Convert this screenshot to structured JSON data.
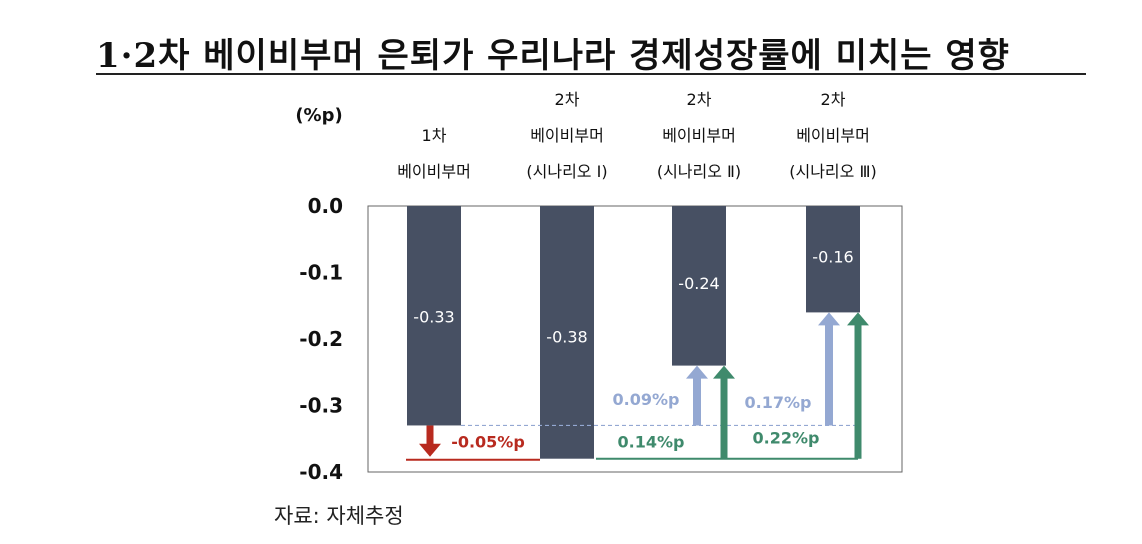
{
  "title": "1·2차 베이비부머 은퇴가 우리나라 경제성장률에 미치는 영향",
  "source": "자료: 자체추정",
  "colors": {
    "bar": "#475063",
    "red": "#b82a1f",
    "green": "#3f8a6c",
    "blue": "#94a8d2"
  },
  "chart_data": {
    "type": "bar",
    "title": "1·2차 베이비부머 은퇴가 우리나라 경제성장률에 미치는 영향",
    "ylabel": "(%p)",
    "ylim": [
      -0.4,
      0.0
    ],
    "yticks": [
      "0.0",
      "-0.1",
      "-0.2",
      "-0.3",
      "-0.4"
    ],
    "ytick_values": [
      0.0,
      -0.1,
      -0.2,
      -0.3,
      -0.4
    ],
    "categories": [
      [
        "1차",
        "베이비부머"
      ],
      [
        "2차",
        "베이비부머",
        "(시나리오 Ⅰ)"
      ],
      [
        "2차",
        "베이비부머",
        "(시나리오 Ⅱ)"
      ],
      [
        "2차",
        "베이비부머",
        "(시나리오 Ⅲ)"
      ]
    ],
    "values": [
      -0.33,
      -0.38,
      -0.24,
      -0.16
    ],
    "bar_labels": [
      "-0.33",
      "-0.38",
      "-0.24",
      "-0.16"
    ],
    "annotations": [
      {
        "label": "-0.05%p",
        "color": "red"
      },
      {
        "label": "0.09%p",
        "color": "blue"
      },
      {
        "label": "0.14%p",
        "color": "green"
      },
      {
        "label": "0.17%p",
        "color": "blue"
      },
      {
        "label": "0.22%p",
        "color": "green"
      }
    ]
  }
}
